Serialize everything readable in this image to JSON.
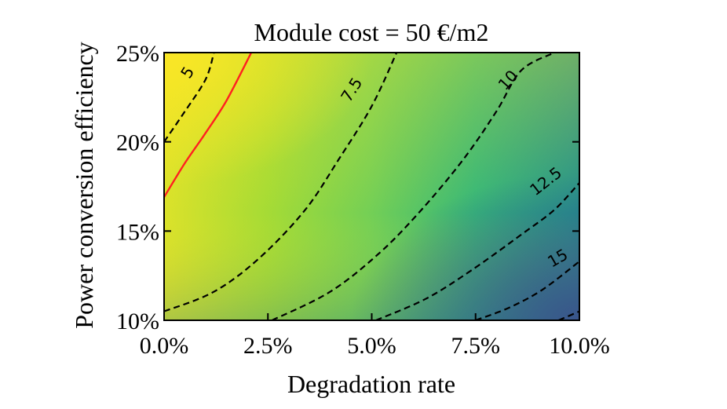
{
  "chart_data": {
    "type": "contour",
    "title": "Module cost = 50 €/m2",
    "xlabel": "Degradation rate",
    "ylabel": "Power conversion efficiency",
    "xlim": [
      0,
      10
    ],
    "ylim": [
      10,
      25
    ],
    "x_ticks": [
      0,
      2.5,
      5,
      7.5,
      10
    ],
    "x_tick_labels": [
      "0.0%",
      "2.5%",
      "5.0%",
      "7.5%",
      "10.0%"
    ],
    "y_ticks": [
      10,
      15,
      20,
      25
    ],
    "y_tick_labels": [
      "10%",
      "15%",
      "20%",
      "25%"
    ],
    "colormap": "viridis",
    "grid": false,
    "contour_levels": [
      {
        "label": "5",
        "style": "dashed",
        "color": "#000000",
        "points": [
          [
            0,
            20
          ],
          [
            0.5,
            21.7
          ],
          [
            1.0,
            23.5
          ],
          [
            1.2,
            25
          ]
        ]
      },
      {
        "label": "7.5",
        "style": "dashed",
        "color": "#000000",
        "points": [
          [
            0,
            10.5
          ],
          [
            1.2,
            11.6
          ],
          [
            2.3,
            13.5
          ],
          [
            3.4,
            16.2
          ],
          [
            4.2,
            19.0
          ],
          [
            5.0,
            22.0
          ],
          [
            5.6,
            25
          ]
        ]
      },
      {
        "label": "10",
        "style": "dashed",
        "color": "#000000",
        "points": [
          [
            2.6,
            10
          ],
          [
            4.0,
            11.6
          ],
          [
            5.2,
            13.8
          ],
          [
            6.2,
            16.2
          ],
          [
            7.2,
            19.0
          ],
          [
            8.0,
            21.7
          ],
          [
            8.6,
            24.0
          ],
          [
            9.4,
            25
          ]
        ]
      },
      {
        "label": "12.5",
        "style": "dashed",
        "color": "#000000",
        "points": [
          [
            5.1,
            10
          ],
          [
            6.3,
            11.2
          ],
          [
            7.4,
            12.8
          ],
          [
            8.6,
            14.8
          ],
          [
            9.4,
            16.2
          ],
          [
            10,
            17.7
          ]
        ]
      },
      {
        "label": "15",
        "style": "dashed",
        "color": "#000000",
        "points": [
          [
            7.5,
            10
          ],
          [
            8.3,
            10.7
          ],
          [
            9.1,
            11.7
          ],
          [
            10,
            13.3
          ]
        ]
      },
      {
        "label": "",
        "style": "dashed",
        "color": "#000000",
        "points": [
          [
            9.5,
            10
          ],
          [
            10,
            10.5
          ]
        ]
      }
    ],
    "highlight_curve": {
      "color": "#ff2020",
      "points": [
        [
          0,
          16.9
        ],
        [
          0.5,
          18.8
        ],
        [
          1.0,
          20.5
        ],
        [
          1.5,
          22.3
        ],
        [
          2.1,
          25
        ]
      ]
    }
  }
}
